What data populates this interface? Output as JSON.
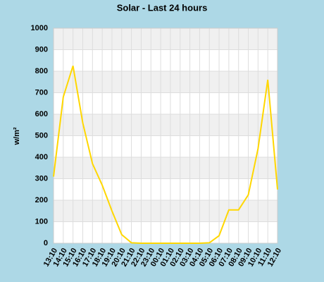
{
  "chart_data": {
    "type": "line",
    "title": "Solar - Last 24 hours",
    "y_label": "w/m²",
    "categories": [
      "13:10",
      "14:10",
      "15:10",
      "16:10",
      "17:10",
      "18:10",
      "19:10",
      "20:10",
      "21:10",
      "22:10",
      "23:10",
      "00:10",
      "01:10",
      "02:10",
      "03:10",
      "04:10",
      "05:10",
      "06:10",
      "07:10",
      "08:10",
      "09:10",
      "10:10",
      "11:10",
      "12:10"
    ],
    "series": [
      {
        "name": "Solar",
        "color": "#ffd700",
        "values": [
          310,
          680,
          825,
          560,
          370,
          270,
          150,
          40,
          2,
          0,
          0,
          0,
          0,
          0,
          0,
          0,
          2,
          35,
          155,
          155,
          225,
          440,
          760,
          250
        ]
      }
    ],
    "ylim": [
      0,
      1000
    ],
    "yticks": [
      0,
      100,
      200,
      300,
      400,
      500,
      600,
      700,
      800,
      900,
      1000
    ],
    "grid": true
  }
}
